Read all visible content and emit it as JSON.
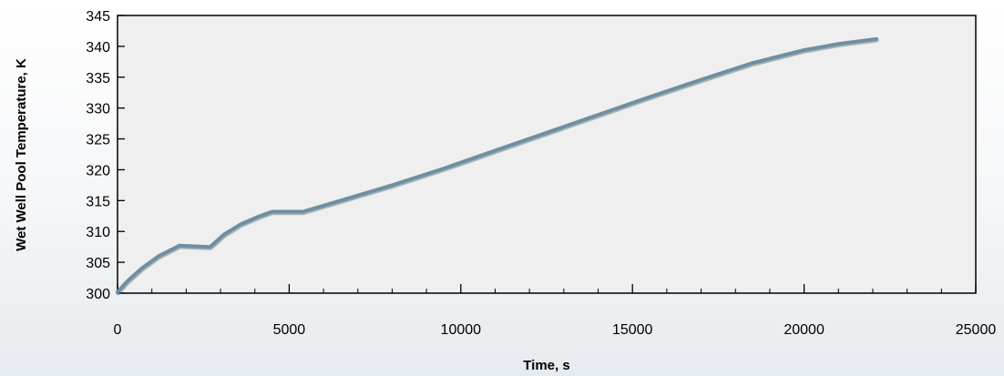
{
  "chart_data": {
    "type": "line",
    "title": "",
    "xlabel": "Time, s",
    "ylabel": "Wet Well Pool Temperature, K",
    "xlim": [
      0,
      25000
    ],
    "ylim": [
      300,
      345
    ],
    "x_ticks": [
      0,
      5000,
      10000,
      15000,
      20000,
      25000
    ],
    "x_tick_labels": [
      "0",
      "5000",
      "10000",
      "15000",
      "20000",
      "25000"
    ],
    "y_ticks": [
      300,
      305,
      310,
      315,
      320,
      325,
      330,
      335,
      340,
      345
    ],
    "y_tick_labels": [
      "300",
      "305",
      "310",
      "315",
      "320",
      "325",
      "330",
      "335",
      "340",
      "345"
    ],
    "grid": false,
    "legend": "none",
    "colors": {
      "line": "#6f8fa0",
      "plot_bg": "#efefef",
      "axis": "#000000"
    },
    "series": [
      {
        "x": [
          0,
          300,
          700,
          1200,
          1800,
          2700,
          3100,
          3600,
          4100,
          4500,
          5400,
          6500,
          8000,
          9500,
          11000,
          12500,
          14000,
          15500,
          17000,
          18500,
          20000,
          21000,
          22100
        ],
        "y": [
          300.2,
          302,
          304,
          306,
          307.7,
          307.5,
          309.5,
          311.2,
          312.4,
          313.2,
          313.2,
          315,
          317.5,
          320.2,
          323.1,
          326,
          328.9,
          331.8,
          334.6,
          337.3,
          339.4,
          340.4,
          341.2
        ]
      }
    ]
  }
}
